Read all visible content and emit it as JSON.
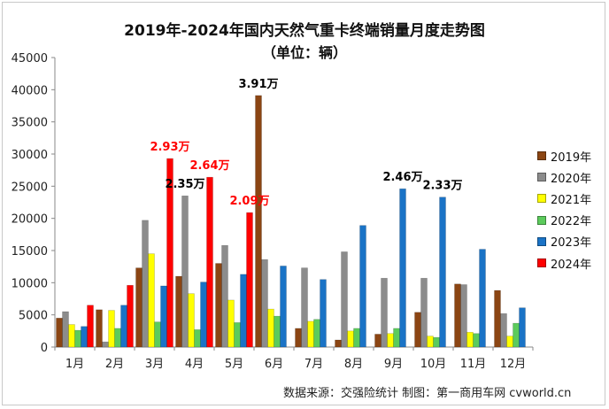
{
  "chart_data": {
    "type": "bar",
    "title": "2019年-2024年国内天然气重卡终端销量月度走势图",
    "subtitle": "（单位：辆）",
    "categories": [
      "1月",
      "2月",
      "3月",
      "4月",
      "5月",
      "6月",
      "7月",
      "8月",
      "9月",
      "10月",
      "11月",
      "12月"
    ],
    "series": [
      {
        "name": "2019年",
        "color": "#8B4513",
        "values": [
          4500,
          5800,
          12300,
          11000,
          13000,
          39100,
          2900,
          1100,
          2000,
          5400,
          9800,
          8800
        ]
      },
      {
        "name": "2020年",
        "color": "#8C8C8C",
        "values": [
          5500,
          800,
          19700,
          23500,
          15800,
          13600,
          12300,
          14800,
          10700,
          10700,
          9700,
          5200
        ]
      },
      {
        "name": "2021年",
        "color": "#FFFF00",
        "values": [
          3500,
          5700,
          14500,
          8300,
          7300,
          5900,
          4000,
          2500,
          2100,
          1700,
          2300,
          1700
        ]
      },
      {
        "name": "2022年",
        "color": "#5CCB5C",
        "values": [
          2600,
          2900,
          3900,
          2700,
          3800,
          4800,
          4300,
          2900,
          2900,
          1500,
          2100,
          3700
        ]
      },
      {
        "name": "2023年",
        "color": "#1A73C6",
        "values": [
          3200,
          6500,
          9500,
          10100,
          11300,
          12600,
          10500,
          18900,
          24600,
          23300,
          15200,
          6100
        ]
      },
      {
        "name": "2024年",
        "color": "#FF0000",
        "values": [
          6500,
          9600,
          29300,
          26400,
          20900,
          null,
          null,
          null,
          null,
          null,
          null,
          null
        ]
      }
    ],
    "ylim": [
      0,
      45000
    ],
    "yticks": [
      "0",
      "5000",
      "10000",
      "15000",
      "20000",
      "25000",
      "30000",
      "35000",
      "40000",
      "45000"
    ],
    "annotations": [
      {
        "text": "2.93万",
        "category": "3月",
        "series": "2024年",
        "color": "#FF0000"
      },
      {
        "text": "2.35万",
        "category": "4月",
        "series": "2020年",
        "color": "#000000"
      },
      {
        "text": "2.64万",
        "category": "4月",
        "series": "2024年",
        "color": "#FF0000"
      },
      {
        "text": "2.09万",
        "category": "5月",
        "series": "2024年",
        "color": "#FF0000"
      },
      {
        "text": "3.91万",
        "category": "6月",
        "series": "2019年",
        "color": "#000000"
      },
      {
        "text": "2.46万",
        "category": "9月",
        "series": "2023年",
        "color": "#000000"
      },
      {
        "text": "2.33万",
        "category": "10月",
        "series": "2023年",
        "color": "#000000"
      }
    ],
    "legend_position": "right",
    "grid": false
  },
  "footer": "数据来源：交强险统计   制图：第一商用车网 cvworld.cn"
}
